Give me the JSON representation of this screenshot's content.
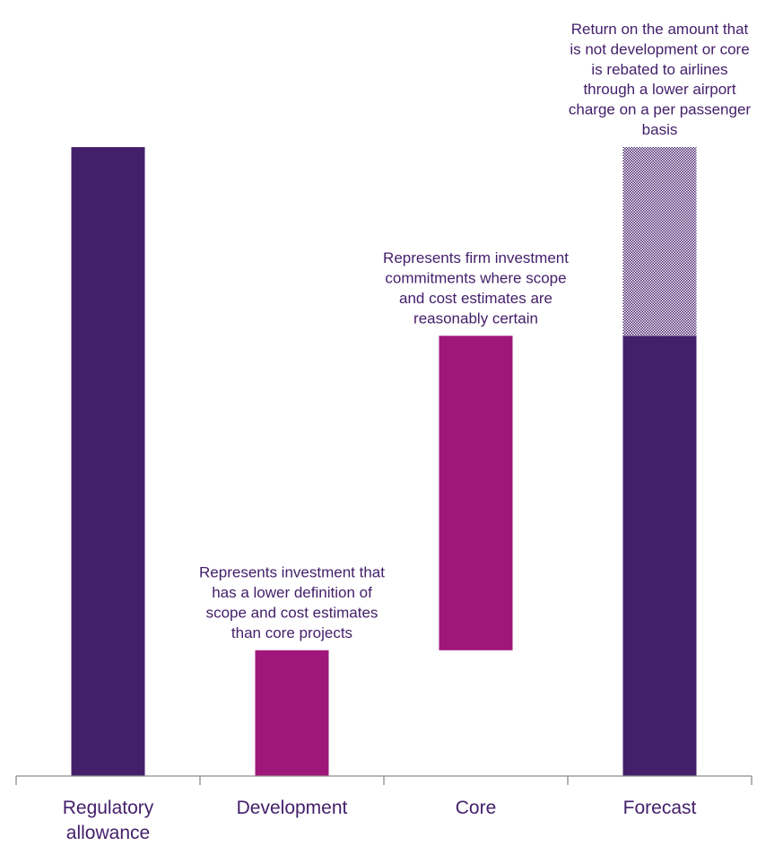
{
  "chart_data": {
    "type": "bar",
    "subtype": "waterfall",
    "title": "",
    "xlabel": "",
    "ylabel": "",
    "ylim": [
      0,
      100
    ],
    "grid": false,
    "legend": "none",
    "categories": [
      {
        "id": "regulatory",
        "lines": [
          "Regulatory",
          "allowance"
        ]
      },
      {
        "id": "development",
        "lines": [
          "Development"
        ]
      },
      {
        "id": "core",
        "lines": [
          "Core"
        ]
      },
      {
        "id": "forecast",
        "lines": [
          "Forecast"
        ]
      }
    ],
    "bars": [
      {
        "category": "regulatory",
        "base": 0,
        "value": 100,
        "color": "#44206b",
        "pattern": "solid"
      },
      {
        "category": "development",
        "base": 0,
        "value": 20,
        "color": "#a0177a",
        "pattern": "solid"
      },
      {
        "category": "core",
        "base": 20,
        "value": 50,
        "color": "#a0177a",
        "pattern": "solid"
      },
      {
        "category": "forecast",
        "base": 0,
        "value": 70,
        "color": "#44206b",
        "pattern": "solid"
      },
      {
        "category": "forecast",
        "base": 70,
        "value": 30,
        "color": "#44206b",
        "pattern": "hatched"
      }
    ],
    "annotations": [
      {
        "category": "development",
        "lines": [
          "Represents investment that",
          "has a lower definition of",
          "scope and cost estimates",
          "than core projects"
        ]
      },
      {
        "category": "core",
        "lines": [
          "Represents firm investment",
          "commitments where scope",
          "and cost estimates are",
          "reasonably certain"
        ]
      },
      {
        "category": "forecast",
        "lines": [
          "Return on the amount that",
          "is not development or core",
          "is rebated to airlines",
          "through a lower airport",
          "charge on a per passenger",
          "basis"
        ]
      }
    ],
    "colors": {
      "axis": "#8c8c8c",
      "text": "#44206b",
      "purple": "#44206b",
      "magenta": "#a0177a"
    }
  }
}
